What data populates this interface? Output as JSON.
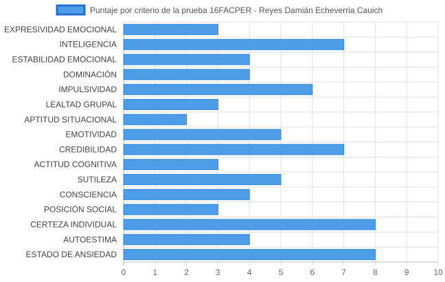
{
  "chart_data": {
    "type": "bar",
    "orientation": "horizontal",
    "categories": [
      "EXPRESIVIDAD EMOCIONAL",
      "INTELIGENCIA",
      "ESTABILIDAD EMOCIONAL",
      "DOMINACIÓN",
      "IMPULSIVIDAD",
      "LEALTAD GRUPAL",
      "APTITUD SITUACIONAL",
      "EMOTIVIDAD",
      "CREDIBILIDAD",
      "ACTITUD COGNITIVA",
      "SUTILEZA",
      "CONSCIENCIA",
      "POSICIÓN SOCIAL",
      "CERTEZA INDIVIDUAL",
      "AUTOESTIMA",
      "ESTADO DE ANSIEDAD"
    ],
    "series": [
      {
        "name": "Puntaje por criterio de la prueba 16FACPER - Reyes Damián Echeverria Cauich",
        "values": [
          3,
          7,
          4,
          4,
          6,
          3,
          2,
          5,
          7,
          3,
          5,
          4,
          3,
          8,
          4,
          8
        ]
      }
    ],
    "xlim": [
      0,
      10
    ],
    "xticks": [
      "0",
      "1",
      "2",
      "3",
      "4",
      "5",
      "6",
      "7",
      "8",
      "9",
      "10"
    ],
    "grid": true,
    "legend_position": "top-center",
    "colors": {
      "bar_fill": "#4d9de8",
      "bar_stroke": "#2f86db",
      "legend_fill": "#4d9de8",
      "legend_stroke": "#1f6fd1"
    }
  }
}
